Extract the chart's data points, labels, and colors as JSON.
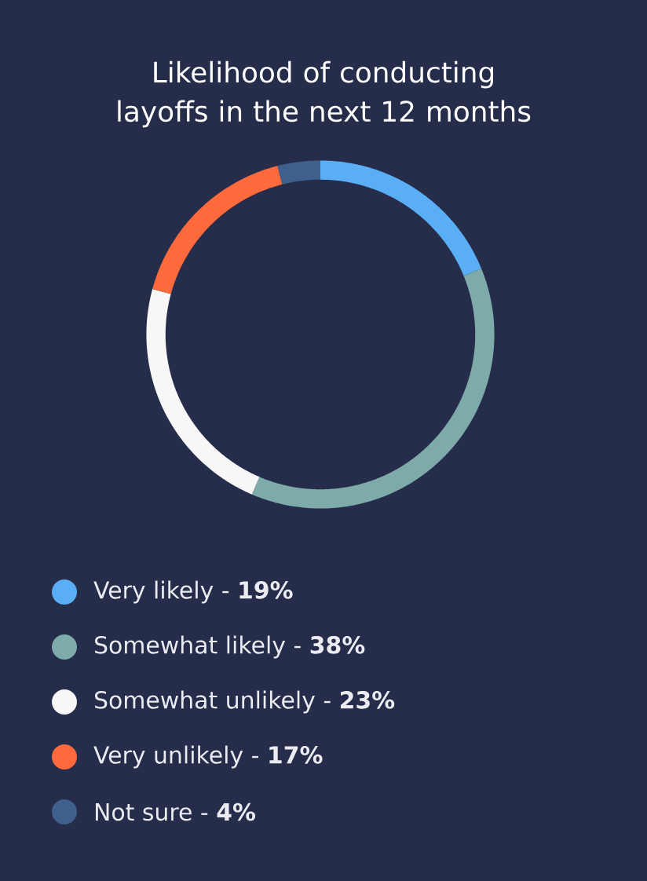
{
  "chart_data": {
    "type": "donut",
    "title": "Likelihood of conducting layoffs in the next 12 months",
    "categories": [
      "Very likely -",
      "Somewhat likely -",
      "Somewhat unlikely -",
      "Very unlikely -",
      "Not sure -"
    ],
    "values": [
      19,
      38,
      23,
      17,
      4
    ],
    "value_labels": [
      "19%",
      "38%",
      "23%",
      "17%",
      "4%"
    ],
    "colors": [
      "#5aaef5",
      "#7eaaa9",
      "#f7f7f7",
      "#ff6a3d",
      "#3f5f8c"
    ],
    "legend": "bottom"
  }
}
